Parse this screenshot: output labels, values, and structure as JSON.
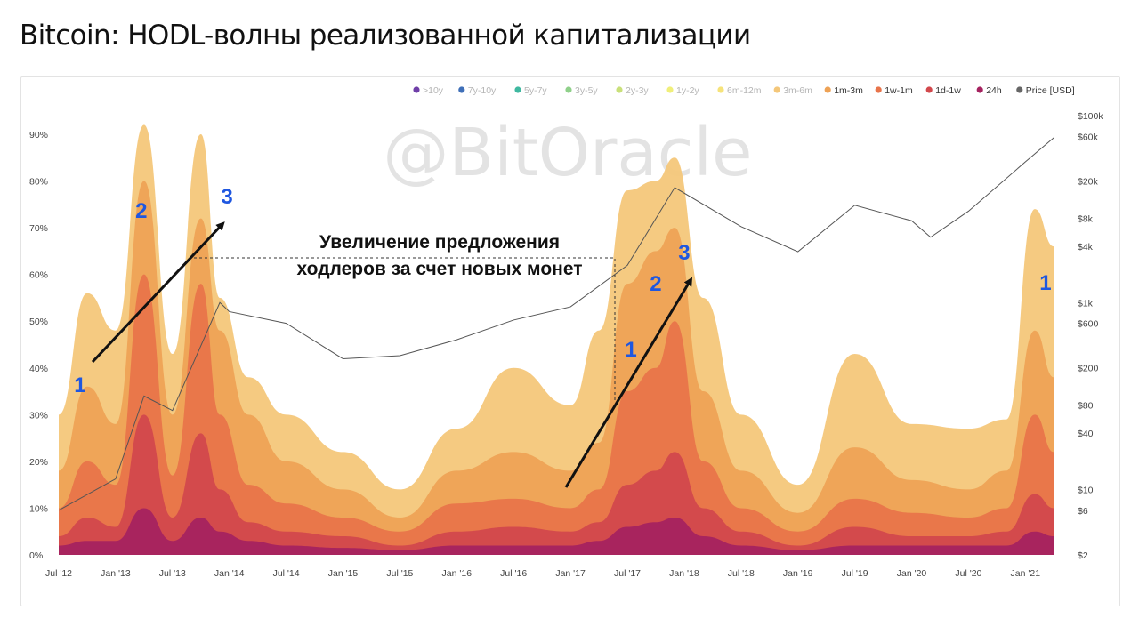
{
  "title": "Bitcoin: HODL-волны реализованной капитализации",
  "watermark": "@BitOracle",
  "annotation": {
    "line1": "Увеличение предложения",
    "line2": "ходлеров за счет новых монет"
  },
  "legend": [
    {
      "label": ">10y",
      "color": "#6f3fa8",
      "active": false
    },
    {
      "label": "7y-10y",
      "color": "#3f6fb8",
      "active": false
    },
    {
      "label": "5y-7y",
      "color": "#3fb8a0",
      "active": false
    },
    {
      "label": "3y-5y",
      "color": "#8fd08a",
      "active": false
    },
    {
      "label": "2y-3y",
      "color": "#c9e07a",
      "active": false
    },
    {
      "label": "1y-2y",
      "color": "#f0ef7a",
      "active": false
    },
    {
      "label": "6m-12m",
      "color": "#f6e37a",
      "active": false
    },
    {
      "label": "3m-6m",
      "color": "#f4c77a",
      "active": false
    },
    {
      "label": "1m-3m",
      "color": "#eea255",
      "active": true
    },
    {
      "label": "1w-1m",
      "color": "#e8744a",
      "active": true
    },
    {
      "label": "1d-1w",
      "color": "#d2484c",
      "active": true
    },
    {
      "label": "24h",
      "color": "#a5225f",
      "active": true
    },
    {
      "label": "Price [USD]",
      "color": "#666666",
      "active": true
    }
  ],
  "markers": [
    {
      "label": "1",
      "x": "Oct '12"
    },
    {
      "label": "2",
      "x": "Apr '13"
    },
    {
      "label": "3",
      "x": "Dec '13"
    },
    {
      "label": "1",
      "x": "Jul '17"
    },
    {
      "label": "2",
      "x": "Oct '17"
    },
    {
      "label": "3",
      "x": "Jan '18"
    },
    {
      "label": "1",
      "x": "Feb '21"
    }
  ],
  "chart_data": {
    "type": "area",
    "title": "Bitcoin: HODL-волны реализованной капитализации",
    "x_ticks": [
      "Jul '12",
      "Jan '13",
      "Jul '13",
      "Jan '14",
      "Jul '14",
      "Jan '15",
      "Jul '15",
      "Jan '16",
      "Jul '16",
      "Jan '17",
      "Jul '17",
      "Jan '18",
      "Jul '18",
      "Jan '19",
      "Jul '19",
      "Jan '20",
      "Jul '20",
      "Jan '21"
    ],
    "y_left_ticks": [
      "0%",
      "10%",
      "20%",
      "30%",
      "40%",
      "50%",
      "60%",
      "70%",
      "80%",
      "90%"
    ],
    "y_left_range": [
      0,
      95
    ],
    "y_right_ticks": [
      "$2",
      "$6",
      "$10",
      "$40",
      "$80",
      "$200",
      "$600",
      "$1k",
      "$4k",
      "$8k",
      "$20k",
      "$60k",
      "$100k"
    ],
    "y_right_scale": "log",
    "y_right_range": [
      2,
      100000
    ],
    "x": [
      "Jul '12",
      "Oct '12",
      "Jan '13",
      "Apr '13",
      "Jul '13",
      "Oct '13",
      "Dec '13",
      "Mar '14",
      "Jul '14",
      "Jan '15",
      "Jul '15",
      "Jan '16",
      "Jul '16",
      "Jan '17",
      "Apr '17",
      "Jul '17",
      "Oct '17",
      "Dec '17",
      "Mar '18",
      "Jul '18",
      "Jan '19",
      "Jul '19",
      "Jan '20",
      "Jul '20",
      "Nov '20",
      "Feb '21",
      "Apr '21"
    ],
    "series": [
      {
        "name": "3m-6m",
        "values": [
          30,
          56,
          48,
          92,
          43,
          90,
          55,
          38,
          30,
          22,
          14,
          27,
          40,
          32,
          48,
          78,
          80,
          85,
          55,
          30,
          15,
          43,
          28,
          27,
          29,
          74,
          66
        ]
      },
      {
        "name": "1m-3m",
        "values": [
          18,
          36,
          28,
          80,
          30,
          72,
          48,
          30,
          20,
          14,
          8,
          18,
          22,
          18,
          24,
          58,
          65,
          70,
          35,
          18,
          9,
          23,
          16,
          14,
          18,
          48,
          38
        ]
      },
      {
        "name": "1w-1m",
        "values": [
          10,
          20,
          15,
          60,
          17,
          58,
          30,
          15,
          11,
          8,
          5,
          11,
          12,
          10,
          14,
          35,
          40,
          50,
          20,
          10,
          5,
          12,
          9,
          8,
          10,
          30,
          22
        ]
      },
      {
        "name": "1d-1w",
        "values": [
          4,
          8,
          6,
          30,
          8,
          26,
          14,
          7,
          5,
          4,
          2,
          5,
          6,
          5,
          7,
          15,
          18,
          22,
          10,
          5,
          2,
          6,
          4,
          4,
          5,
          13,
          10
        ]
      },
      {
        "name": "24h",
        "values": [
          2,
          3,
          3,
          10,
          3,
          8,
          5,
          3,
          2,
          1.5,
          1,
          2,
          2,
          2,
          3,
          6,
          7,
          8,
          4,
          2,
          1,
          2,
          2,
          2,
          2,
          5,
          4
        ]
      }
    ],
    "price": {
      "name": "Price [USD]",
      "x": [
        "Jul '12",
        "Jan '13",
        "Apr '13",
        "Jul '13",
        "Dec '13",
        "Jan '14",
        "Jul '14",
        "Jan '15",
        "Jul '15",
        "Jan '16",
        "Jul '16",
        "Jan '17",
        "Jul '17",
        "Dec '17",
        "Jul '18",
        "Jan '19",
        "Jul '19",
        "Jan '20",
        "Mar '20",
        "Jul '20",
        "Jan '21",
        "Apr '21"
      ],
      "values": [
        6,
        13,
        100,
        70,
        1000,
        800,
        600,
        250,
        270,
        400,
        650,
        900,
        2500,
        17000,
        6500,
        3500,
        11000,
        7500,
        5000,
        9500,
        32000,
        58000
      ]
    }
  }
}
